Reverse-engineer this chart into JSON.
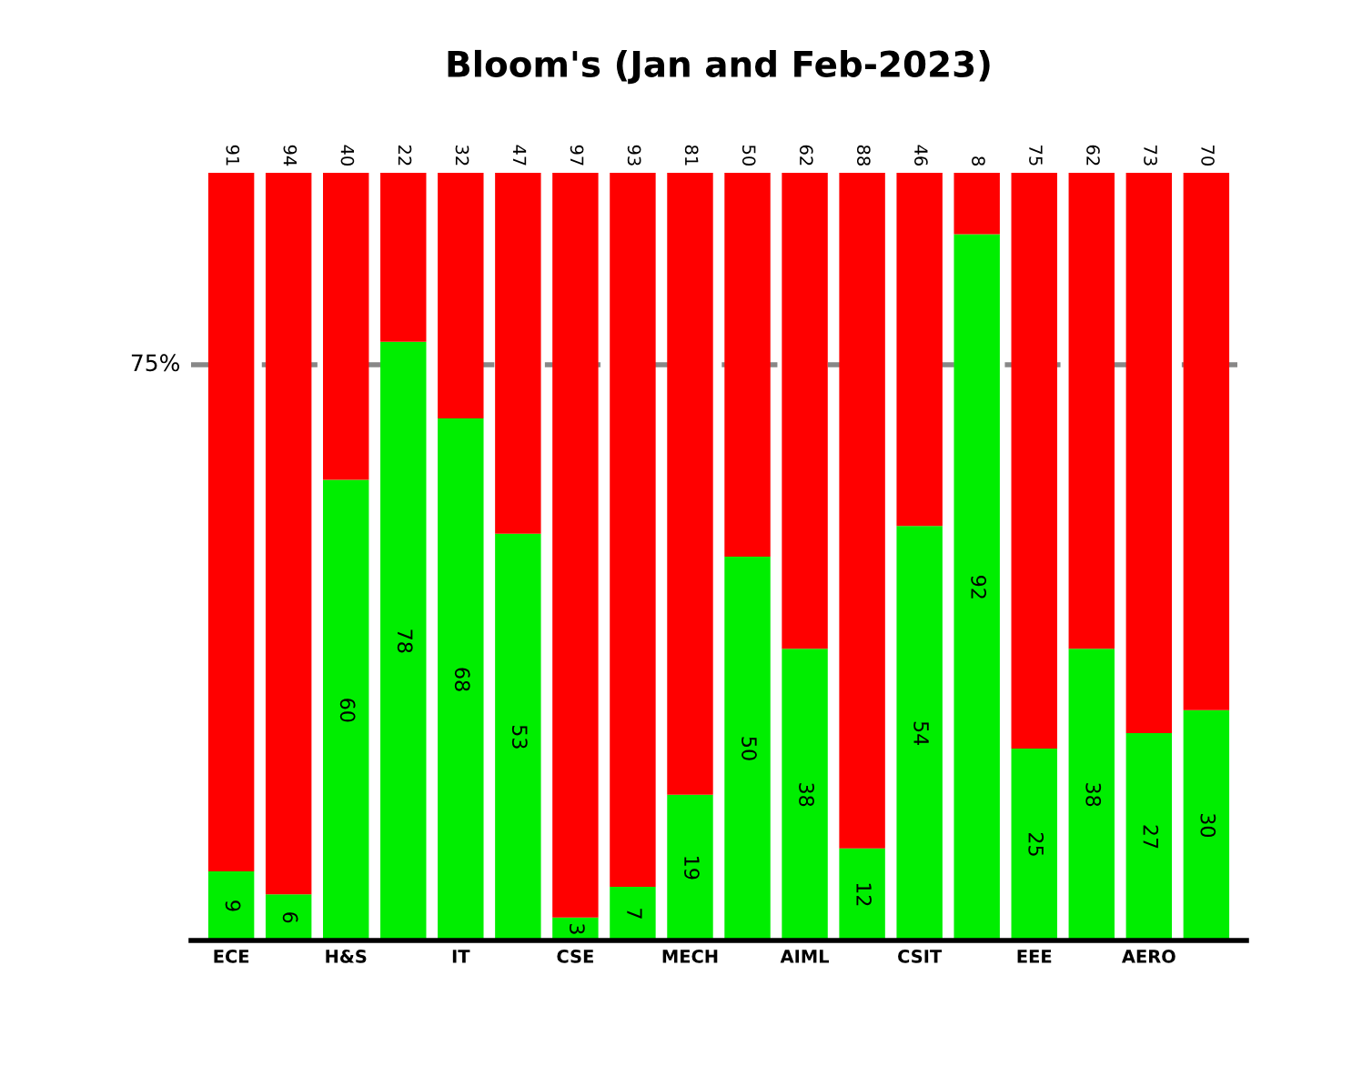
{
  "chart_data": {
    "type": "bar",
    "title": "Bloom's (Jan and Feb-2023)",
    "categories": [
      "ECE",
      null,
      "H&S",
      null,
      "IT",
      null,
      "CSE",
      null,
      "MECH",
      null,
      "AIML",
      null,
      "CSIT",
      null,
      "EEE",
      null,
      "AERO",
      null
    ],
    "stacked": true,
    "series": [
      {
        "color": "#00ee00",
        "values": [
          9,
          6,
          60,
          78,
          68,
          53,
          3,
          7,
          19,
          50,
          38,
          12,
          54,
          92,
          25,
          38,
          27,
          30
        ]
      },
      {
        "color": "#ff0000",
        "values": [
          91,
          94,
          40,
          22,
          32,
          47,
          97,
          93,
          81,
          50,
          62,
          88,
          46,
          8,
          75,
          62,
          73,
          70
        ]
      }
    ],
    "ylim": [
      0,
      100
    ],
    "tick_labels": "x",
    "data_labels": true,
    "ref_lines": [
      {
        "axis": "y",
        "value": 75,
        "label": "75%",
        "color": "#888888",
        "line_style": "dashed"
      }
    ]
  }
}
